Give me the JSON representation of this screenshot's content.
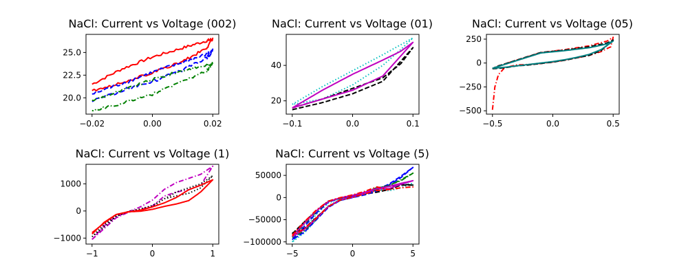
{
  "chart_data": [
    {
      "type": "line",
      "title": "NaCl: Current vs Voltage (002)",
      "xlim": [
        -0.022,
        0.022
      ],
      "ylim": [
        18.2,
        27.0
      ],
      "xticks": [
        -0.02,
        0.0,
        0.02
      ],
      "xtick_labels": [
        "−0.02",
        "0.00",
        "0.02"
      ],
      "yticks": [
        20.0,
        22.5,
        25.0
      ],
      "ytick_labels": [
        "20.0",
        "22.5",
        "25.0"
      ],
      "grid": false,
      "series": [
        {
          "color": "#ff0000",
          "style": "solid",
          "noise": 0.15,
          "x": [
            -0.02,
            -0.01,
            0.0,
            0.01,
            0.018,
            0.02,
            0.018,
            0.01,
            0.0,
            -0.01,
            -0.02
          ],
          "y": [
            21.5,
            23.2,
            24.5,
            25.5,
            26.3,
            26.5,
            25.5,
            24.0,
            22.8,
            21.7,
            20.8
          ]
        },
        {
          "color": "#0000ff",
          "style": "dashed",
          "noise": 0.2,
          "x": [
            -0.02,
            -0.01,
            0.0,
            0.01,
            0.018,
            0.02,
            0.018,
            0.01,
            0.0,
            -0.01,
            -0.02
          ],
          "y": [
            20.4,
            21.6,
            22.8,
            23.9,
            24.8,
            25.2,
            24.4,
            23.0,
            21.8,
            20.8,
            19.6
          ]
        },
        {
          "color": "#008000",
          "style": "dashdot",
          "noise": 0.15,
          "x": [
            -0.02,
            -0.01,
            0.0,
            0.01,
            0.018,
            0.02,
            0.018,
            0.01,
            0.0,
            -0.01,
            -0.02
          ],
          "y": [
            19.7,
            20.8,
            22.0,
            23.0,
            23.6,
            23.8,
            23.0,
            21.8,
            20.4,
            19.4,
            18.6
          ]
        }
      ]
    },
    {
      "type": "line",
      "title": "NaCl: Current vs Voltage (01)",
      "xlim": [
        -0.11,
        0.11
      ],
      "ylim": [
        12.5,
        57.5
      ],
      "xticks": [
        -0.1,
        0.0,
        0.1
      ],
      "xtick_labels": [
        "−0.1",
        "0.0",
        "0.1"
      ],
      "yticks": [
        20,
        40
      ],
      "ytick_labels": [
        "20",
        "40"
      ],
      "grid": false,
      "series": [
        {
          "color": "#00bfbf",
          "style": "dotted",
          "noise": 0,
          "x": [
            -0.1,
            -0.05,
            0.0,
            0.05,
            0.1,
            0.08,
            0.05,
            0.0,
            -0.05,
            -0.1
          ],
          "y": [
            18,
            28,
            37,
            46,
            55.5,
            49,
            40,
            29,
            21,
            18
          ]
        },
        {
          "color": "#000000",
          "style": "dashed",
          "noise": 0,
          "x": [
            -0.1,
            -0.05,
            0.0,
            0.05,
            0.1,
            0.08,
            0.05,
            0.0,
            -0.05,
            -0.1
          ],
          "y": [
            15,
            19,
            24,
            31,
            50,
            41,
            33,
            27,
            21,
            16
          ]
        },
        {
          "color": "#bf00bf",
          "style": "solid",
          "noise": 0,
          "x": [
            -0.1,
            -0.05,
            0.0,
            0.05,
            0.1,
            0.08,
            0.05,
            0.0,
            -0.05,
            -0.1
          ],
          "y": [
            16,
            21,
            26,
            34,
            53,
            48,
            43,
            35,
            26,
            16
          ]
        }
      ]
    },
    {
      "type": "line",
      "title": "NaCl: Current vs Voltage (05)",
      "xlim": [
        -0.55,
        0.55
      ],
      "ylim": [
        -535,
        300
      ],
      "xticks": [
        -0.5,
        0.0,
        0.5
      ],
      "xtick_labels": [
        "−0.5",
        "0.0",
        "0.5"
      ],
      "yticks": [
        -500,
        -250,
        0,
        250
      ],
      "ytick_labels": [
        "−500",
        "−250",
        "0",
        "250"
      ],
      "grid": false,
      "series": [
        {
          "color": "#ff0000",
          "style": "dashdot",
          "noise": 0,
          "x": [
            -0.5,
            -0.48,
            -0.45,
            -0.4,
            -0.3,
            -0.2,
            -0.1,
            0.0,
            0.1,
            0.2,
            0.3,
            0.4,
            0.48,
            0.5,
            0.45,
            0.3,
            0.1,
            -0.1,
            -0.3,
            -0.45,
            -0.5
          ],
          "y": [
            -490,
            -250,
            -120,
            -50,
            -20,
            -15,
            -5,
            10,
            30,
            55,
            80,
            120,
            170,
            270,
            230,
            180,
            140,
            110,
            30,
            -30,
            -55
          ]
        },
        {
          "color": "#000000",
          "style": "dashed",
          "noise": 0,
          "x": [
            -0.5,
            -0.4,
            -0.3,
            -0.2,
            -0.1,
            0.0,
            0.1,
            0.2,
            0.3,
            0.4,
            0.5,
            0.45,
            0.3,
            0.1,
            -0.1,
            -0.3,
            -0.45,
            -0.5
          ],
          "y": [
            -60,
            -50,
            -30,
            -20,
            -5,
            10,
            30,
            55,
            80,
            130,
            240,
            210,
            170,
            135,
            110,
            30,
            -30,
            -60
          ]
        },
        {
          "color": "#008080",
          "style": "solid",
          "noise": 0,
          "x": [
            -0.5,
            -0.4,
            -0.3,
            -0.2,
            -0.1,
            0.0,
            0.1,
            0.2,
            0.3,
            0.4,
            0.5,
            0.45,
            0.3,
            0.1,
            -0.1,
            -0.3,
            -0.45,
            -0.5
          ],
          "y": [
            -55,
            -45,
            -30,
            -15,
            0,
            15,
            35,
            60,
            90,
            140,
            230,
            200,
            160,
            130,
            105,
            25,
            -35,
            -55
          ]
        }
      ]
    },
    {
      "type": "line",
      "title": "NaCl: Current vs Voltage (1)",
      "xlim": [
        -1.1,
        1.1
      ],
      "ylim": [
        -1220,
        1720
      ],
      "xticks": [
        -1,
        0,
        1
      ],
      "xtick_labels": [
        "−1",
        "0",
        "1"
      ],
      "yticks": [
        -1000,
        0,
        1000
      ],
      "ytick_labels": [
        "−1000",
        "0",
        "1000"
      ],
      "grid": false,
      "series": [
        {
          "color": "#bf00bf",
          "style": "dashdot",
          "noise": 0,
          "x": [
            -1.0,
            -0.8,
            -0.6,
            -0.4,
            -0.2,
            0.0,
            0.2,
            0.4,
            0.6,
            0.8,
            1.0,
            0.8,
            0.6,
            0.4,
            0.2,
            0.0,
            -0.2,
            -0.4,
            -0.6,
            -0.8,
            -1.0
          ],
          "y": [
            -1050,
            -650,
            -250,
            -50,
            50,
            180,
            550,
            700,
            780,
            950,
            1650,
            1350,
            1200,
            1050,
            800,
            400,
            150,
            -30,
            -200,
            -550,
            -1050
          ]
        },
        {
          "color": "#000000",
          "style": "dotted",
          "noise": 0,
          "x": [
            -1.0,
            -0.8,
            -0.6,
            -0.4,
            -0.2,
            0.0,
            0.2,
            0.4,
            0.6,
            0.8,
            1.0,
            0.8,
            0.6,
            0.4,
            0.2,
            0.0,
            -0.2,
            -0.4,
            -0.6,
            -0.8,
            -1.0
          ],
          "y": [
            -950,
            -600,
            -200,
            -30,
            30,
            150,
            450,
            560,
            650,
            850,
            1300,
            1000,
            850,
            700,
            450,
            200,
            80,
            -20,
            -180,
            -500,
            -950
          ]
        },
        {
          "color": "#ff0000",
          "style": "solid",
          "noise": 0,
          "x": [
            -1.0,
            -0.8,
            -0.6,
            -0.4,
            -0.2,
            0.0,
            0.2,
            0.4,
            0.6,
            0.8,
            1.0,
            0.8,
            0.6,
            0.4,
            0.2,
            0.0,
            -0.2,
            -0.4,
            -0.6,
            -0.8,
            -1.0
          ],
          "y": [
            -800,
            -450,
            -130,
            -30,
            -10,
            60,
            170,
            260,
            380,
            700,
            1150,
            950,
            780,
            500,
            300,
            150,
            30,
            -40,
            -130,
            -420,
            -850
          ]
        }
      ]
    },
    {
      "type": "line",
      "title": "NaCl: Current vs Voltage (5)",
      "xlim": [
        -5.5,
        5.5
      ],
      "ylim": [
        -105000,
        75000
      ],
      "xticks": [
        -5,
        0,
        5
      ],
      "xtick_labels": [
        "−5",
        "0",
        "5"
      ],
      "yticks": [
        -100000,
        -50000,
        0,
        50000
      ],
      "ytick_labels": [
        "−100000",
        "−50000",
        "0",
        "50000"
      ],
      "grid": false,
      "series": [
        {
          "color": "#00bfbf",
          "style": "dotted",
          "noise": 0,
          "x": [
            -5,
            -4,
            -3,
            -2,
            -1,
            0,
            1,
            2,
            3,
            4,
            5,
            4,
            3,
            2,
            1,
            0,
            -1,
            -2,
            -3,
            -4,
            -5
          ],
          "y": [
            -100000,
            -72000,
            -38000,
            -12000,
            -2000,
            5000,
            12000,
            20000,
            15000,
            22000,
            32000,
            28000,
            20000,
            15000,
            8000,
            3000,
            -4000,
            -18000,
            -50000,
            -80000,
            -100000
          ]
        },
        {
          "color": "#000000",
          "style": "dashed",
          "noise": 0,
          "x": [
            -5,
            -4,
            -3,
            -2,
            -1,
            0,
            1,
            2,
            3,
            4,
            5,
            4,
            3,
            2,
            1,
            0,
            -1,
            -2,
            -3,
            -4,
            -5
          ],
          "y": [
            -82000,
            -55000,
            -30000,
            -8000,
            -1000,
            4000,
            8000,
            12000,
            18000,
            28000,
            28000,
            30000,
            25000,
            22000,
            10000,
            0,
            -6000,
            -20000,
            -45000,
            -70000,
            -80000
          ]
        },
        {
          "color": "#0000ff",
          "style": "dashed",
          "noise": 0,
          "x": [
            -5,
            -4,
            -3,
            -2,
            -1,
            0,
            1,
            2,
            3,
            4,
            5,
            4,
            3,
            2,
            1,
            0,
            -1,
            -2,
            -3,
            -4,
            -5
          ],
          "y": [
            -95000,
            -65000,
            -35000,
            -10000,
            -1500,
            4000,
            10000,
            18000,
            30000,
            48000,
            68000,
            45000,
            28000,
            15000,
            6000,
            0,
            -6000,
            -22000,
            -50000,
            -78000,
            -95000
          ]
        },
        {
          "color": "#008000",
          "style": "dashdot",
          "noise": 0,
          "x": [
            -5,
            -4,
            -3,
            -2,
            -1,
            0,
            1,
            2,
            3,
            4,
            5,
            4,
            3,
            2,
            1,
            0,
            -1,
            -2,
            -3,
            -4,
            -5
          ],
          "y": [
            -90000,
            -60000,
            -32000,
            -9000,
            -1000,
            5000,
            12000,
            22000,
            26000,
            40000,
            55000,
            38000,
            28000,
            18000,
            8000,
            1000,
            -5000,
            -20000,
            -48000,
            -75000,
            -90000
          ]
        },
        {
          "color": "#bf00bf",
          "style": "solid",
          "noise": 0,
          "x": [
            -5,
            -4,
            -3,
            -2,
            -1,
            0,
            1,
            2,
            3,
            4,
            5,
            4,
            3,
            2,
            1,
            0,
            -1,
            -2,
            -3,
            -4,
            -5
          ],
          "y": [
            -88000,
            -58000,
            -30000,
            -9000,
            -500,
            5000,
            12000,
            20000,
            20000,
            30000,
            38000,
            32000,
            25000,
            20000,
            9000,
            1000,
            -5000,
            -20000,
            -47000,
            -72000,
            -88000
          ]
        },
        {
          "color": "#ff0000",
          "style": "dashdot",
          "noise": 0,
          "x": [
            -5,
            -4,
            -3,
            -2,
            -1,
            0,
            1,
            2,
            3,
            4,
            5,
            4,
            3,
            2,
            1,
            0,
            -1,
            -2,
            -3,
            -4,
            -5
          ],
          "y": [
            -85000,
            -55000,
            -28000,
            -8000,
            0,
            6000,
            14000,
            24000,
            18000,
            22000,
            24000,
            22000,
            18000,
            16000,
            8000,
            1000,
            -5000,
            -20000,
            -46000,
            -70000,
            -86000
          ]
        }
      ]
    }
  ]
}
